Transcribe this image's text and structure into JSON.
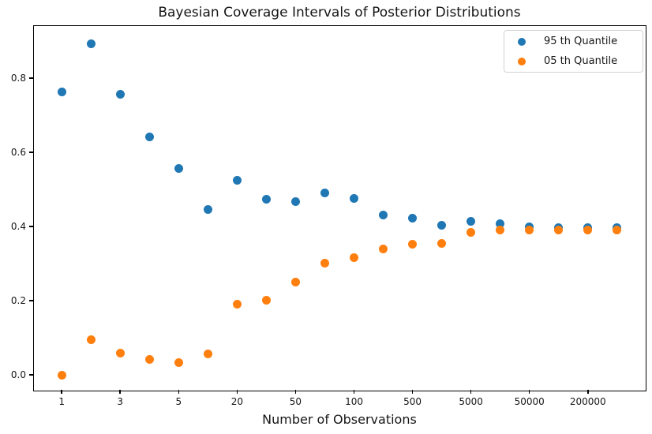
{
  "chart_data": {
    "type": "scatter",
    "title": "Bayesian Coverage Intervals of Posterior Distributions",
    "xlabel": "Number of Observations",
    "ylabel": "",
    "grid": false,
    "legend_position": "upper right",
    "xlim": [
      -0.95,
      19.95
    ],
    "ylim": [
      -0.04,
      0.94
    ],
    "x_positions": [
      0,
      1,
      2,
      3,
      4,
      5,
      6,
      7,
      8,
      9,
      10,
      11,
      12,
      13,
      14,
      15,
      16,
      17,
      18,
      19
    ],
    "x_ticks": [
      {
        "pos": 0,
        "label": "1"
      },
      {
        "pos": 2,
        "label": "3"
      },
      {
        "pos": 4,
        "label": "5"
      },
      {
        "pos": 6,
        "label": "20"
      },
      {
        "pos": 8,
        "label": "50"
      },
      {
        "pos": 10,
        "label": "100"
      },
      {
        "pos": 12,
        "label": "500"
      },
      {
        "pos": 14,
        "label": "5000"
      },
      {
        "pos": 16,
        "label": "50000"
      },
      {
        "pos": 18,
        "label": "200000"
      }
    ],
    "y_ticks": [
      {
        "value": 0.0,
        "label": "0.0"
      },
      {
        "value": 0.2,
        "label": "0.2"
      },
      {
        "value": 0.4,
        "label": "0.4"
      },
      {
        "value": 0.6,
        "label": "0.6"
      },
      {
        "value": 0.8,
        "label": "0.8"
      }
    ],
    "series": [
      {
        "name": "95 th Quantile",
        "color": "#1f77b4",
        "values": [
          0.763,
          0.893,
          0.756,
          0.642,
          0.557,
          0.446,
          0.525,
          0.473,
          0.467,
          0.491,
          0.475,
          0.43,
          0.423,
          0.404,
          0.413,
          0.407,
          0.398,
          0.396,
          0.397,
          0.397
        ]
      },
      {
        "name": "05 th Quantile",
        "color": "#ff7f0e",
        "values": [
          0.0,
          0.094,
          0.059,
          0.042,
          0.033,
          0.057,
          0.191,
          0.202,
          0.25,
          0.302,
          0.317,
          0.339,
          0.353,
          0.354,
          0.385,
          0.39,
          0.391,
          0.39,
          0.391,
          0.391
        ]
      }
    ]
  }
}
